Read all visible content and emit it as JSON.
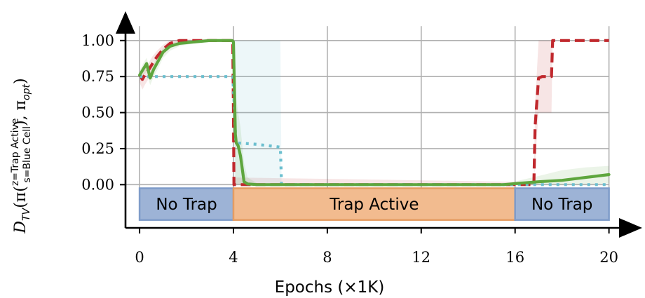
{
  "chart_data": {
    "type": "line",
    "title": "",
    "xlabel": "Epochs (×1K)",
    "ylabel": {
      "prefix": "D",
      "prefix_sub": "TV",
      "open": "(π(",
      "sup": "z=Trap Active",
      "sub": "s=Blue Cell",
      "close": "), π",
      "close_sub": "opt",
      "end": ")"
    },
    "xlim": [
      -0.6,
      20.4
    ],
    "ylim": [
      -0.3,
      1.15
    ],
    "x_ticks": [
      0,
      4,
      8,
      12,
      16,
      20
    ],
    "x_tick_labels": [
      "0",
      "4",
      "8",
      "12",
      "16",
      "20"
    ],
    "y_ticks": [
      0.0,
      0.25,
      0.5,
      0.75,
      1.0
    ],
    "y_tick_labels": [
      "0.00",
      "0.25",
      "0.50",
      "0.75",
      "1.00"
    ],
    "grid": true,
    "legend": "none",
    "phases": [
      {
        "label": "No Trap",
        "start": 0,
        "end": 4,
        "color": "#9db3d6",
        "edge": "#7f9cc9"
      },
      {
        "label": "Trap Active",
        "start": 4,
        "end": 16,
        "color": "#f2bb8f",
        "edge": "#e59c62"
      },
      {
        "label": "No Trap",
        "start": 16,
        "end": 20,
        "color": "#9db3d6",
        "edge": "#7f9cc9"
      }
    ],
    "phase_band": [
      -0.025,
      -0.245
    ],
    "series": [
      {
        "style": "dashed",
        "color": "#c0282d",
        "x": [
          0,
          0.12,
          0.25,
          0.4,
          0.55,
          0.75,
          1.0,
          1.3,
          1.7,
          2.2,
          3.0,
          3.97,
          4.0,
          4.02,
          16.0,
          16.8,
          16.85,
          17.0,
          17.15,
          17.55,
          17.6,
          18.0,
          19.0,
          20.0
        ],
        "y": [
          0.76,
          0.73,
          0.77,
          0.8,
          0.84,
          0.89,
          0.94,
          0.98,
          1.0,
          1.0,
          1.0,
          1.0,
          0.5,
          0.0,
          0.0,
          0.0,
          0.4,
          0.74,
          0.75,
          0.75,
          1.0,
          1.0,
          1.0,
          1.0
        ],
        "band_upper": [
          0.79,
          0.77,
          0.81,
          0.85,
          0.89,
          0.93,
          0.97,
          1.0,
          1.01,
          1.01,
          1.01,
          1.01,
          0.6,
          0.05,
          0.02,
          0.02,
          0.55,
          1.0,
          1.0,
          1.0,
          1.0,
          1.0,
          1.0,
          1.0
        ],
        "band_lower": [
          0.71,
          0.66,
          0.7,
          0.74,
          0.78,
          0.84,
          0.9,
          0.95,
          0.99,
          0.99,
          0.99,
          0.99,
          0.0,
          0.0,
          0.0,
          0.0,
          0.15,
          0.5,
          0.5,
          0.5,
          1.0,
          1.0,
          1.0,
          1.0
        ]
      },
      {
        "style": "dotted",
        "color": "#6bbfcf",
        "x": [
          0,
          1.3,
          2.5,
          3.97,
          4.05,
          4.1,
          5.0,
          6.0,
          6.05,
          8.0,
          12.0,
          16.0,
          18.0,
          20.0
        ],
        "y": [
          0.75,
          0.75,
          0.75,
          0.75,
          0.5,
          0.29,
          0.28,
          0.26,
          0.0,
          0.0,
          0.0,
          0.0,
          0.0,
          0.0
        ],
        "band_upper": [
          0.75,
          0.75,
          0.75,
          0.75,
          1.0,
          1.0,
          1.0,
          1.0,
          0.0,
          0.0,
          0.0,
          0.0,
          0.0,
          0.0
        ],
        "band_lower": [
          0.75,
          0.75,
          0.75,
          0.75,
          0.0,
          0.0,
          0.0,
          0.0,
          0.0,
          0.0,
          0.0,
          0.0,
          0.0,
          0.0
        ]
      },
      {
        "style": "solid",
        "color": "#5ea63e",
        "x": [
          0,
          0.15,
          0.3,
          0.45,
          0.6,
          0.8,
          1.0,
          1.3,
          1.7,
          2.3,
          3.0,
          3.5,
          3.95,
          4.0,
          4.08,
          4.12,
          4.2,
          4.3,
          4.45,
          4.6,
          5.0,
          8.0,
          12.0,
          15.5,
          16.2,
          17.0,
          18.0,
          19.0,
          20.0
        ],
        "y": [
          0.76,
          0.8,
          0.84,
          0.74,
          0.8,
          0.86,
          0.92,
          0.96,
          0.98,
          0.99,
          1.0,
          1.0,
          1.0,
          0.99,
          0.35,
          0.29,
          0.27,
          0.2,
          0.02,
          0.005,
          0.0,
          0.0,
          0.0,
          0.0,
          0.01,
          0.02,
          0.03,
          0.05,
          0.07
        ],
        "band_upper": [
          0.79,
          0.84,
          0.88,
          0.79,
          0.84,
          0.9,
          0.95,
          0.98,
          1.0,
          1.0,
          1.0,
          1.0,
          1.0,
          1.0,
          0.8,
          0.6,
          0.5,
          0.4,
          0.15,
          0.05,
          0.01,
          0.0,
          0.0,
          0.0,
          0.03,
          0.06,
          0.1,
          0.12,
          0.13
        ],
        "band_lower": [
          0.72,
          0.76,
          0.78,
          0.69,
          0.75,
          0.81,
          0.88,
          0.93,
          0.96,
          0.98,
          0.99,
          0.99,
          0.99,
          0.95,
          0.0,
          0.0,
          0.0,
          0.0,
          0.0,
          0.0,
          0.0,
          0.0,
          0.0,
          0.0,
          0.0,
          0.0,
          0.0,
          0.0,
          0.01
        ]
      }
    ]
  }
}
